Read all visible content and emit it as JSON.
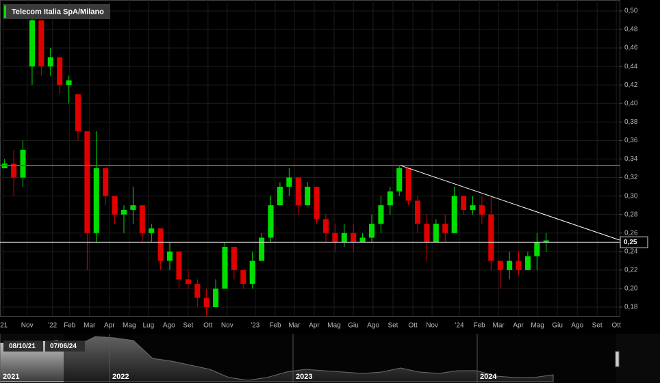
{
  "chart_data": {
    "type": "candlestick",
    "title": "Telecom Italia SpA/Milano",
    "colors": {
      "up": "#00e000",
      "down": "#e00000",
      "flat": "#b0b0b0"
    },
    "ohlc": [
      [
        0.33,
        0.34,
        0.33,
        0.335
      ],
      [
        0.335,
        0.35,
        0.3,
        0.32
      ],
      [
        0.32,
        0.36,
        0.31,
        0.35
      ],
      [
        0.44,
        0.5,
        0.42,
        0.49
      ],
      [
        0.49,
        0.49,
        0.43,
        0.44
      ],
      [
        0.44,
        0.46,
        0.43,
        0.45
      ],
      [
        0.45,
        0.45,
        0.41,
        0.42
      ],
      [
        0.42,
        0.43,
        0.4,
        0.425
      ],
      [
        0.41,
        0.41,
        0.36,
        0.37
      ],
      [
        0.37,
        0.37,
        0.22,
        0.26
      ],
      [
        0.26,
        0.37,
        0.25,
        0.33
      ],
      [
        0.33,
        0.33,
        0.29,
        0.3
      ],
      [
        0.3,
        0.3,
        0.27,
        0.28
      ],
      [
        0.28,
        0.29,
        0.26,
        0.285
      ],
      [
        0.285,
        0.31,
        0.27,
        0.29
      ],
      [
        0.29,
        0.29,
        0.25,
        0.26
      ],
      [
        0.26,
        0.27,
        0.25,
        0.265
      ],
      [
        0.265,
        0.265,
        0.22,
        0.23
      ],
      [
        0.23,
        0.25,
        0.22,
        0.24
      ],
      [
        0.24,
        0.24,
        0.2,
        0.21
      ],
      [
        0.21,
        0.22,
        0.2,
        0.205
      ],
      [
        0.205,
        0.21,
        0.18,
        0.19
      ],
      [
        0.19,
        0.2,
        0.17,
        0.18
      ],
      [
        0.18,
        0.21,
        0.18,
        0.2
      ],
      [
        0.2,
        0.25,
        0.2,
        0.245
      ],
      [
        0.245,
        0.245,
        0.21,
        0.22
      ],
      [
        0.22,
        0.22,
        0.2,
        0.205
      ],
      [
        0.205,
        0.24,
        0.2,
        0.23
      ],
      [
        0.23,
        0.26,
        0.23,
        0.255
      ],
      [
        0.255,
        0.3,
        0.25,
        0.29
      ],
      [
        0.29,
        0.315,
        0.29,
        0.31
      ],
      [
        0.31,
        0.33,
        0.3,
        0.32
      ],
      [
        0.32,
        0.32,
        0.28,
        0.29
      ],
      [
        0.29,
        0.315,
        0.29,
        0.31
      ],
      [
        0.31,
        0.31,
        0.27,
        0.275
      ],
      [
        0.275,
        0.28,
        0.25,
        0.26
      ],
      [
        0.26,
        0.27,
        0.24,
        0.25
      ],
      [
        0.25,
        0.27,
        0.245,
        0.26
      ],
      [
        0.26,
        0.27,
        0.24,
        0.25
      ],
      [
        0.25,
        0.26,
        0.25,
        0.255
      ],
      [
        0.255,
        0.28,
        0.25,
        0.27
      ],
      [
        0.27,
        0.3,
        0.26,
        0.29
      ],
      [
        0.29,
        0.31,
        0.28,
        0.305
      ],
      [
        0.305,
        0.333,
        0.3,
        0.33
      ],
      [
        0.33,
        0.33,
        0.29,
        0.295
      ],
      [
        0.295,
        0.3,
        0.26,
        0.27
      ],
      [
        0.27,
        0.28,
        0.23,
        0.25
      ],
      [
        0.25,
        0.275,
        0.25,
        0.27
      ],
      [
        0.27,
        0.28,
        0.25,
        0.26
      ],
      [
        0.26,
        0.31,
        0.26,
        0.3
      ],
      [
        0.3,
        0.3,
        0.28,
        0.285
      ],
      [
        0.285,
        0.3,
        0.28,
        0.29
      ],
      [
        0.29,
        0.3,
        0.27,
        0.28
      ],
      [
        0.28,
        0.3,
        0.22,
        0.23
      ],
      [
        0.23,
        0.23,
        0.2,
        0.22
      ],
      [
        0.22,
        0.24,
        0.21,
        0.23
      ],
      [
        0.23,
        0.24,
        0.215,
        0.22
      ],
      [
        0.22,
        0.24,
        0.22,
        0.235
      ],
      [
        0.235,
        0.26,
        0.22,
        0.25
      ],
      [
        0.25,
        0.26,
        0.24,
        0.252
      ]
    ],
    "xlim": [
      -0.5,
      67
    ],
    "xticks": [
      {
        "value": -0.15,
        "label": "'21"
      },
      {
        "value": 2.46,
        "label": "Nov"
      },
      {
        "value": 5.22,
        "label": "'22"
      },
      {
        "value": 7.09,
        "label": "Feb"
      },
      {
        "value": 9.25,
        "label": "Mar"
      },
      {
        "value": 11.42,
        "label": "Apr"
      },
      {
        "value": 13.58,
        "label": "Mag"
      },
      {
        "value": 15.67,
        "label": "Lug"
      },
      {
        "value": 17.91,
        "label": "Ago"
      },
      {
        "value": 20.0,
        "label": "Set"
      },
      {
        "value": 22.16,
        "label": "Ott"
      },
      {
        "value": 24.25,
        "label": "Nov"
      },
      {
        "value": 27.31,
        "label": "'23"
      },
      {
        "value": 29.48,
        "label": "Feb"
      },
      {
        "value": 31.57,
        "label": "Mar"
      },
      {
        "value": 33.73,
        "label": "Apr"
      },
      {
        "value": 35.9,
        "label": "Mag"
      },
      {
        "value": 37.99,
        "label": "Giu"
      },
      {
        "value": 40.15,
        "label": "Ago"
      },
      {
        "value": 42.31,
        "label": "Set"
      },
      {
        "value": 44.48,
        "label": "Ott"
      },
      {
        "value": 46.57,
        "label": "Nov"
      },
      {
        "value": 49.55,
        "label": "'24"
      },
      {
        "value": 51.72,
        "label": "Feb"
      },
      {
        "value": 53.81,
        "label": "Mar"
      },
      {
        "value": 55.97,
        "label": "Apr"
      },
      {
        "value": 58.06,
        "label": "Mag"
      },
      {
        "value": 60.22,
        "label": "Giu"
      },
      {
        "value": 62.39,
        "label": "Ago"
      },
      {
        "value": 64.55,
        "label": "Set"
      },
      {
        "value": 66.64,
        "label": "Ott"
      }
    ],
    "ylim": [
      0.1704,
      0.5118
    ],
    "yticks": [
      {
        "value": 0.18,
        "label": "0,18"
      },
      {
        "value": 0.2,
        "label": "0,20"
      },
      {
        "value": 0.22,
        "label": "0,22"
      },
      {
        "value": 0.24,
        "label": "0,24"
      },
      {
        "value": 0.26,
        "label": "0,26"
      },
      {
        "value": 0.28,
        "label": "0,28"
      },
      {
        "value": 0.3,
        "label": "0,30"
      },
      {
        "value": 0.32,
        "label": "0,32"
      },
      {
        "value": 0.34,
        "label": "0,34"
      },
      {
        "value": 0.36,
        "label": "0,36"
      },
      {
        "value": 0.38,
        "label": "0,38"
      },
      {
        "value": 0.4,
        "label": "0,40"
      },
      {
        "value": 0.42,
        "label": "0,42"
      },
      {
        "value": 0.44,
        "label": "0,44"
      },
      {
        "value": 0.46,
        "label": "0,46"
      },
      {
        "value": 0.48,
        "label": "0,48"
      },
      {
        "value": 0.5,
        "label": "0,50"
      }
    ],
    "horizontal_line": {
      "value": 0.333,
      "color": "#ff2020"
    },
    "trend_line": {
      "x": [
        43.13,
        67
      ],
      "y": [
        0.333,
        0.2524
      ],
      "color": "#ffffff"
    },
    "last_price": {
      "value": 0.25,
      "label": "0,25"
    },
    "navigator": {
      "ylim": [
        0.17,
        0.51
      ],
      "values": [
        0.45,
        0.44,
        0.46,
        0.47,
        0.43,
        0.5,
        0.49,
        0.47,
        0.34,
        0.32,
        0.29,
        0.26,
        0.2,
        0.18,
        0.2,
        0.24,
        0.26,
        0.25,
        0.24,
        0.23,
        0.24,
        0.27,
        0.24,
        0.23,
        0.25,
        0.25,
        0.21,
        0.2,
        0.2,
        0.22
      ],
      "year_labels": [
        "2021",
        "2022",
        "2023",
        "2024"
      ],
      "range_start": "08/10/21",
      "range_end": "07/06/24"
    }
  }
}
